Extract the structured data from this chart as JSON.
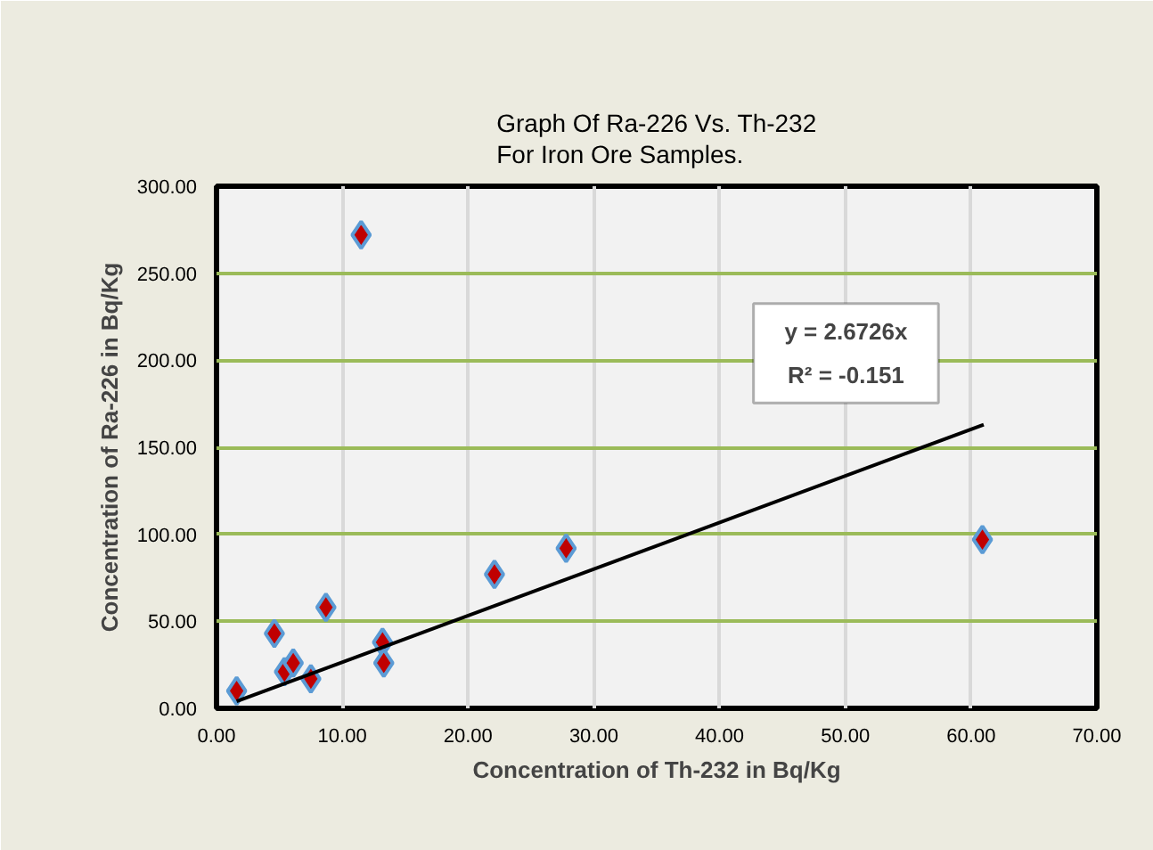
{
  "chart_data": {
    "type": "scatter",
    "title": "Graph Of Ra-226 Vs. Th-232 For Iron Ore Samples.",
    "xlabel": "Concentration of Th-232 in Bq/Kg",
    "ylabel": "Concentration of Ra-226 in Bq/Kg",
    "series": [
      {
        "color": "#c00000",
        "marker": "diamond",
        "x": [
          1.6,
          4.6,
          5.4,
          6.1,
          7.5,
          8.7,
          11.5,
          13.2,
          13.3,
          22.1,
          27.8,
          60.9
        ],
        "values": [
          10,
          43,
          21,
          26,
          17,
          58,
          272,
          38,
          26,
          77,
          92,
          97
        ]
      },
      {
        "type": "line",
        "color": "#000000",
        "x": [
          1.6,
          61
        ],
        "values": [
          4,
          163
        ]
      }
    ],
    "annotations": [
      "y = 2.6726x",
      "R² = -0.151"
    ],
    "xlim": [
      0,
      70
    ],
    "ylim": [
      0,
      300
    ],
    "xticks": [
      {
        "value": 0,
        "label": "0.00"
      },
      {
        "value": 10,
        "label": "10.00"
      },
      {
        "value": 20,
        "label": "20.00"
      },
      {
        "value": 30,
        "label": "30.00"
      },
      {
        "value": 40,
        "label": "40.00"
      },
      {
        "value": 50,
        "label": "50.00"
      },
      {
        "value": 60,
        "label": "60.00"
      },
      {
        "value": 70,
        "label": "70.00"
      }
    ],
    "yticks": [
      {
        "value": 0,
        "label": "0.00"
      },
      {
        "value": 50,
        "label": "50.00"
      },
      {
        "value": 100,
        "label": "100.00"
      },
      {
        "value": 150,
        "label": "150.00"
      },
      {
        "value": 200,
        "label": "200.00"
      },
      {
        "value": 250,
        "label": "250.00"
      },
      {
        "value": 300,
        "label": "300.00"
      }
    ],
    "grid": true
  }
}
